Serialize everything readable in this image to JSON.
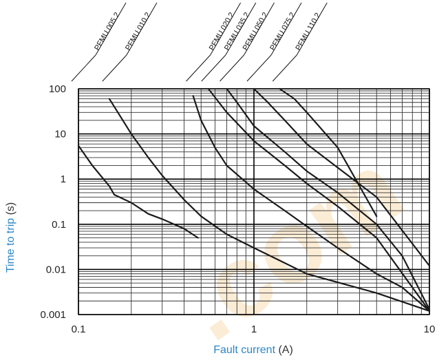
{
  "chart_data": {
    "type": "line",
    "x_scale": "log",
    "y_scale": "log",
    "xlim": [
      0.1,
      10
    ],
    "ylim": [
      0.001,
      100
    ],
    "grid": true,
    "xlabel": {
      "text": "Fault current",
      "unit": "(A)"
    },
    "ylabel": {
      "text": "Time to trip",
      "unit": "(s)"
    },
    "x_ticks": [
      {
        "value": 0.1,
        "label": "0.1"
      },
      {
        "value": 1,
        "label": "1"
      },
      {
        "value": 10,
        "label": "10"
      }
    ],
    "y_ticks": [
      {
        "value": 100,
        "label": "100"
      },
      {
        "value": 10,
        "label": "10"
      },
      {
        "value": 1,
        "label": "1"
      },
      {
        "value": 0.1,
        "label": "0.1"
      },
      {
        "value": 0.01,
        "label": "0.01"
      },
      {
        "value": 0.001,
        "label": "0.001"
      }
    ],
    "series": [
      {
        "name": "PFMU.005.2",
        "points": [
          [
            0.1,
            5.5
          ],
          [
            0.12,
            2
          ],
          [
            0.15,
            0.7
          ],
          [
            0.16,
            0.45
          ],
          [
            0.2,
            0.3
          ],
          [
            0.25,
            0.17
          ],
          [
            0.3,
            0.13
          ],
          [
            0.4,
            0.08
          ],
          [
            0.48,
            0.05
          ]
        ]
      },
      {
        "name": "PFMU.010.2",
        "points": [
          [
            0.15,
            60
          ],
          [
            0.2,
            10
          ],
          [
            0.25,
            3
          ],
          [
            0.3,
            1.2
          ],
          [
            0.4,
            0.35
          ],
          [
            0.5,
            0.15
          ],
          [
            0.7,
            0.06
          ],
          [
            1,
            0.03
          ],
          [
            2,
            0.008
          ],
          [
            5,
            0.003
          ],
          [
            10,
            0.0012
          ]
        ]
      },
      {
        "name": "PFMU.020.2",
        "points": [
          [
            0.45,
            70
          ],
          [
            0.5,
            20
          ],
          [
            0.6,
            5
          ],
          [
            0.7,
            2
          ],
          [
            1,
            0.6
          ],
          [
            1.5,
            0.2
          ],
          [
            2,
            0.09
          ],
          [
            3,
            0.03
          ],
          [
            5,
            0.008
          ],
          [
            7,
            0.004
          ],
          [
            10,
            0.0012
          ]
        ]
      },
      {
        "name": "PFMU.035.2",
        "points": [
          [
            0.55,
            100
          ],
          [
            0.7,
            30
          ],
          [
            1,
            7
          ],
          [
            1.5,
            2
          ],
          [
            2,
            0.8
          ],
          [
            3,
            0.25
          ],
          [
            5,
            0.05
          ],
          [
            10,
            0.0012
          ]
        ]
      },
      {
        "name": "PFMU.050.2",
        "points": [
          [
            0.7,
            100
          ],
          [
            0.8,
            50
          ],
          [
            1,
            15
          ],
          [
            1.5,
            4
          ],
          [
            2,
            1.5
          ],
          [
            3,
            0.5
          ],
          [
            5,
            0.1
          ],
          [
            7,
            0.02
          ],
          [
            10,
            0.0013
          ]
        ]
      },
      {
        "name": "PFMU.075.2",
        "points": [
          [
            1,
            100
          ],
          [
            1.2,
            50
          ],
          [
            1.5,
            20
          ],
          [
            2,
            6
          ],
          [
            3,
            1.8
          ],
          [
            5,
            0.4
          ],
          [
            10,
            0.012
          ]
        ]
      },
      {
        "name": "PFMU.110.2",
        "points": [
          [
            1.4,
            100
          ],
          [
            1.7,
            60
          ],
          [
            2,
            30
          ],
          [
            3,
            5
          ],
          [
            5,
            0.15
          ]
        ]
      }
    ]
  }
}
